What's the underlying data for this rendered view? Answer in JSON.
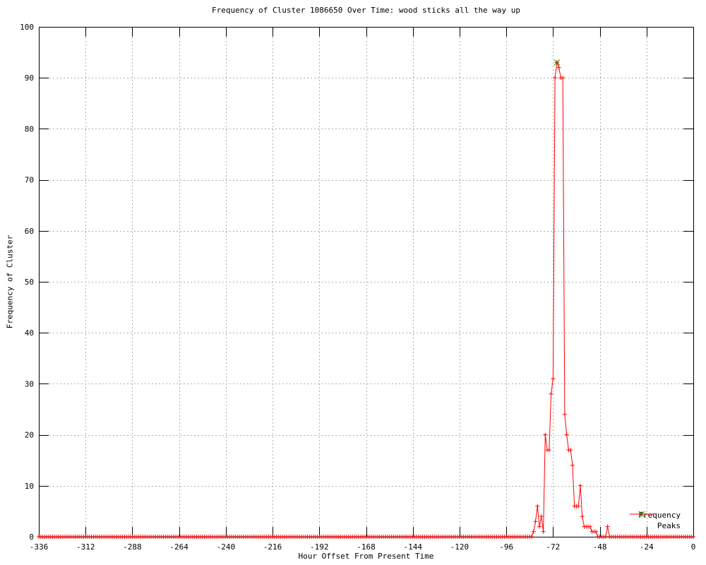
{
  "window": {
    "kind": "gnuplot-style frequency chart"
  },
  "colors": {
    "background": "#ffffff",
    "frequency_line": "#ff0000",
    "peaks_marker": "#00a000",
    "grid": "#b0b0b0",
    "axis": "#000000",
    "text": "#000000"
  },
  "legend": {
    "entries": [
      {
        "label": "Frequency",
        "marker": "plus",
        "color": "#ff0000"
      },
      {
        "label": "Peaks",
        "marker": "cross",
        "color": "#00a000"
      }
    ]
  },
  "chart_data": {
    "type": "line",
    "title": "Frequency of Cluster 1086650 Over Time: wood sticks all the way up",
    "xlabel": "Hour Offset From Present Time",
    "ylabel": "Frequency of Cluster",
    "xlim": [
      -336,
      0
    ],
    "ylim": [
      0,
      100
    ],
    "grid": true,
    "grid_style": "dotted",
    "legend_position": "bottom-right-inside",
    "x_ticks": [
      "-336",
      "-312",
      "-288",
      "-264",
      "-240",
      "-216",
      "-192",
      "-168",
      "-144",
      "-120",
      "-96",
      "-72",
      "-48",
      "-24",
      "0"
    ],
    "y_ticks": [
      "0",
      "10",
      "20",
      "30",
      "40",
      "50",
      "60",
      "70",
      "80",
      "90",
      "100"
    ],
    "series": [
      {
        "name": "Frequency",
        "style": "linespoints",
        "marker": "plus",
        "color": "#ff0000",
        "x_unit": "hour_offset",
        "hours_range": [
          -336,
          0
        ],
        "default_value": 0,
        "values_by_hour": {
          "-82": 1,
          "-81": 3,
          "-80": 6,
          "-79": 2,
          "-78": 4,
          "-77": 1,
          "-76": 20,
          "-75": 17,
          "-74": 17,
          "-73": 28,
          "-72": 31,
          "-71": 90,
          "-70": 93,
          "-69": 92,
          "-68": 90,
          "-67": 90,
          "-66": 24,
          "-65": 20,
          "-64": 17,
          "-63": 17,
          "-62": 14,
          "-61": 6,
          "-60": 6,
          "-59": 6,
          "-58": 10,
          "-57": 4,
          "-56": 2,
          "-55": 2,
          "-54": 2,
          "-53": 2,
          "-52": 1,
          "-51": 1,
          "-50": 1,
          "-44": 2
        }
      },
      {
        "name": "Peaks",
        "style": "points",
        "marker": "cross",
        "color": "#00a000",
        "points": [
          {
            "hour": -70,
            "value": 93
          }
        ]
      }
    ]
  }
}
